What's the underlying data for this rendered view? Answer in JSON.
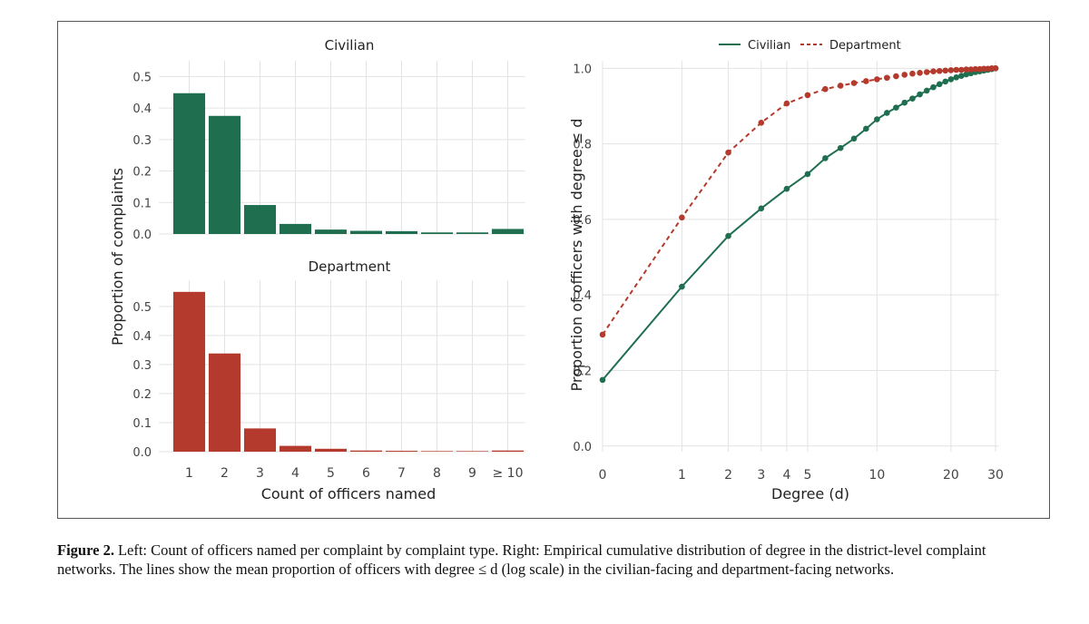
{
  "caption": {
    "label": "Figure 2.",
    "text": "Left: Count of officers named per complaint by complaint type. Right: Empirical cumulative distribution of degree in the district-level complaint networks. The lines show the mean proportion of officers with degree ≤ d (log scale) in the civilian-facing and department-facing networks."
  },
  "colors": {
    "civilian": "#1e6e4f",
    "department": "#b33a2c",
    "grid": "#e3e3e3"
  },
  "chart_data": [
    {
      "type": "bar",
      "title": "Civilian",
      "categories": [
        "1",
        "2",
        "3",
        "4",
        "5",
        "6",
        "7",
        "8",
        "9",
        "≥ 10"
      ],
      "values": [
        0.447,
        0.375,
        0.092,
        0.032,
        0.014,
        0.01,
        0.009,
        0.005,
        0.005,
        0.016
      ],
      "ylabel": "Proportion of complaints",
      "xlabel": "",
      "ylim": [
        0,
        0.55
      ],
      "yticks": [
        0.0,
        0.1,
        0.2,
        0.3,
        0.4,
        0.5
      ],
      "ytick_labels": [
        "0.0",
        "0.1",
        "0.2",
        "0.3",
        "0.4",
        "0.5"
      ]
    },
    {
      "type": "bar",
      "title": "Department",
      "categories": [
        "1",
        "2",
        "3",
        "4",
        "5",
        "6",
        "7",
        "8",
        "9",
        "≥ 10"
      ],
      "values": [
        0.55,
        0.338,
        0.08,
        0.02,
        0.01,
        0.004,
        0.003,
        0.002,
        0.002,
        0.004
      ],
      "ylabel": "Proportion of complaints",
      "xlabel": "Count of officers named",
      "ylim": [
        0,
        0.59
      ],
      "yticks": [
        0.0,
        0.1,
        0.2,
        0.3,
        0.4,
        0.5
      ],
      "ytick_labels": [
        "0.0",
        "0.1",
        "0.2",
        "0.3",
        "0.4",
        "0.5"
      ]
    },
    {
      "type": "line",
      "title": "",
      "xlabel": "Degree (d)",
      "ylabel": "Proportion of officers with degree ≤ d",
      "xscale": "log(d+1)",
      "xlim": [
        0,
        31
      ],
      "ylim": [
        -0.015,
        1.02
      ],
      "xticks": [
        0,
        1,
        2,
        3,
        4,
        5,
        10,
        20,
        30
      ],
      "xtick_labels": [
        "0",
        "1",
        "2",
        "3",
        "4",
        "5",
        "10",
        "20",
        "30"
      ],
      "yticks": [
        0.0,
        0.2,
        0.4,
        0.6,
        0.8,
        1.0
      ],
      "ytick_labels": [
        "0.0",
        "0.2",
        "0.4",
        "0.6",
        "0.8",
        "1.0"
      ],
      "legend": {
        "placement": "top",
        "labels": [
          "Civilian",
          "Department"
        ]
      },
      "series": [
        {
          "name": "Civilian",
          "style": "solid",
          "x": [
            0,
            1,
            2,
            3,
            4,
            5,
            6,
            7,
            8,
            9,
            10,
            11,
            12,
            13,
            14,
            15,
            16,
            17,
            18,
            19,
            20,
            21,
            22,
            23,
            24,
            25,
            26,
            27,
            28,
            29,
            30
          ],
          "y": [
            0.175,
            0.422,
            0.556,
            0.629,
            0.681,
            0.72,
            0.762,
            0.789,
            0.814,
            0.84,
            0.865,
            0.882,
            0.896,
            0.909,
            0.92,
            0.931,
            0.941,
            0.95,
            0.958,
            0.965,
            0.971,
            0.976,
            0.98,
            0.984,
            0.987,
            0.99,
            0.992,
            0.994,
            0.996,
            0.998,
            1.0
          ]
        },
        {
          "name": "Department",
          "style": "dashed",
          "x": [
            0,
            1,
            2,
            3,
            4,
            5,
            6,
            7,
            8,
            9,
            10,
            11,
            12,
            13,
            14,
            15,
            16,
            17,
            18,
            19,
            20,
            21,
            22,
            23,
            24,
            25,
            26,
            27,
            28,
            29,
            30
          ],
          "y": [
            0.295,
            0.605,
            0.777,
            0.856,
            0.907,
            0.929,
            0.945,
            0.954,
            0.961,
            0.966,
            0.971,
            0.975,
            0.979,
            0.983,
            0.986,
            0.988,
            0.99,
            0.992,
            0.993,
            0.994,
            0.995,
            0.996,
            0.996,
            0.997,
            0.997,
            0.998,
            0.998,
            0.999,
            0.999,
            1.0,
            1.0
          ]
        }
      ]
    }
  ]
}
